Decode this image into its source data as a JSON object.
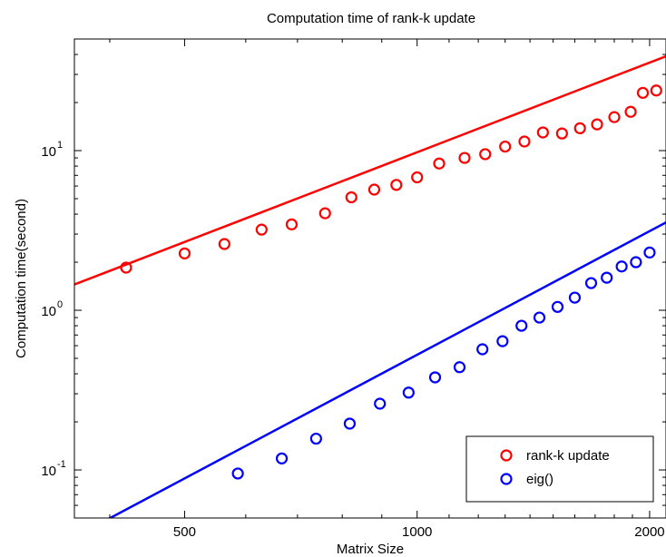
{
  "chart_data": {
    "type": "scatter",
    "title": "Computation time of rank-k update",
    "xlabel": "Matrix Size",
    "ylabel": "Computation time(second)",
    "x_scale": "log",
    "y_scale": "log",
    "xlim": [
      360,
      2100
    ],
    "ylim": [
      0.05,
      50
    ],
    "x_ticks": [
      {
        "value": 500,
        "label": "500"
      },
      {
        "value": 1000,
        "label": "1000"
      },
      {
        "value": 2000,
        "label": "2000"
      }
    ],
    "y_ticks": [
      {
        "value": 0.1,
        "base": "10",
        "exp": "-1"
      },
      {
        "value": 1,
        "base": "10",
        "exp": "0"
      },
      {
        "value": 10,
        "base": "10",
        "exp": "1"
      }
    ],
    "grid": false,
    "legend_position": "bottom-right",
    "series": [
      {
        "name": "rank-k update",
        "color": "#ff0000",
        "marker": "circle",
        "x": [
          420,
          500,
          563,
          629,
          688,
          760,
          822,
          880,
          940,
          1000,
          1068,
          1152,
          1225,
          1300,
          1377,
          1455,
          1540,
          1625,
          1710,
          1800,
          1890,
          1960,
          2040
        ],
        "y": [
          1.85,
          2.27,
          2.6,
          3.2,
          3.45,
          4.05,
          5.1,
          5.7,
          6.1,
          6.8,
          8.3,
          9.0,
          9.5,
          10.6,
          11.4,
          13.0,
          12.8,
          13.8,
          14.6,
          16.2,
          17.5,
          23.0,
          23.8
        ]
      },
      {
        "name": "eig()",
        "color": "#0000ff",
        "marker": "circle",
        "x": [
          586,
          668,
          740,
          818,
          895,
          975,
          1055,
          1135,
          1215,
          1290,
          1365,
          1440,
          1520,
          1600,
          1680,
          1760,
          1840,
          1920,
          2000
        ],
        "y": [
          0.095,
          0.118,
          0.157,
          0.195,
          0.26,
          0.305,
          0.38,
          0.44,
          0.57,
          0.64,
          0.8,
          0.9,
          1.05,
          1.2,
          1.48,
          1.6,
          1.88,
          2.0,
          2.3
        ]
      }
    ],
    "fit_lines": [
      {
        "series": "rank-k update",
        "color": "#ff0000",
        "x": [
          360,
          2100
        ],
        "y": [
          1.45,
          39
        ]
      },
      {
        "series": "eig()",
        "color": "#0000ff",
        "x": [
          360,
          2100
        ],
        "y": [
          0.038,
          3.55
        ]
      }
    ]
  }
}
